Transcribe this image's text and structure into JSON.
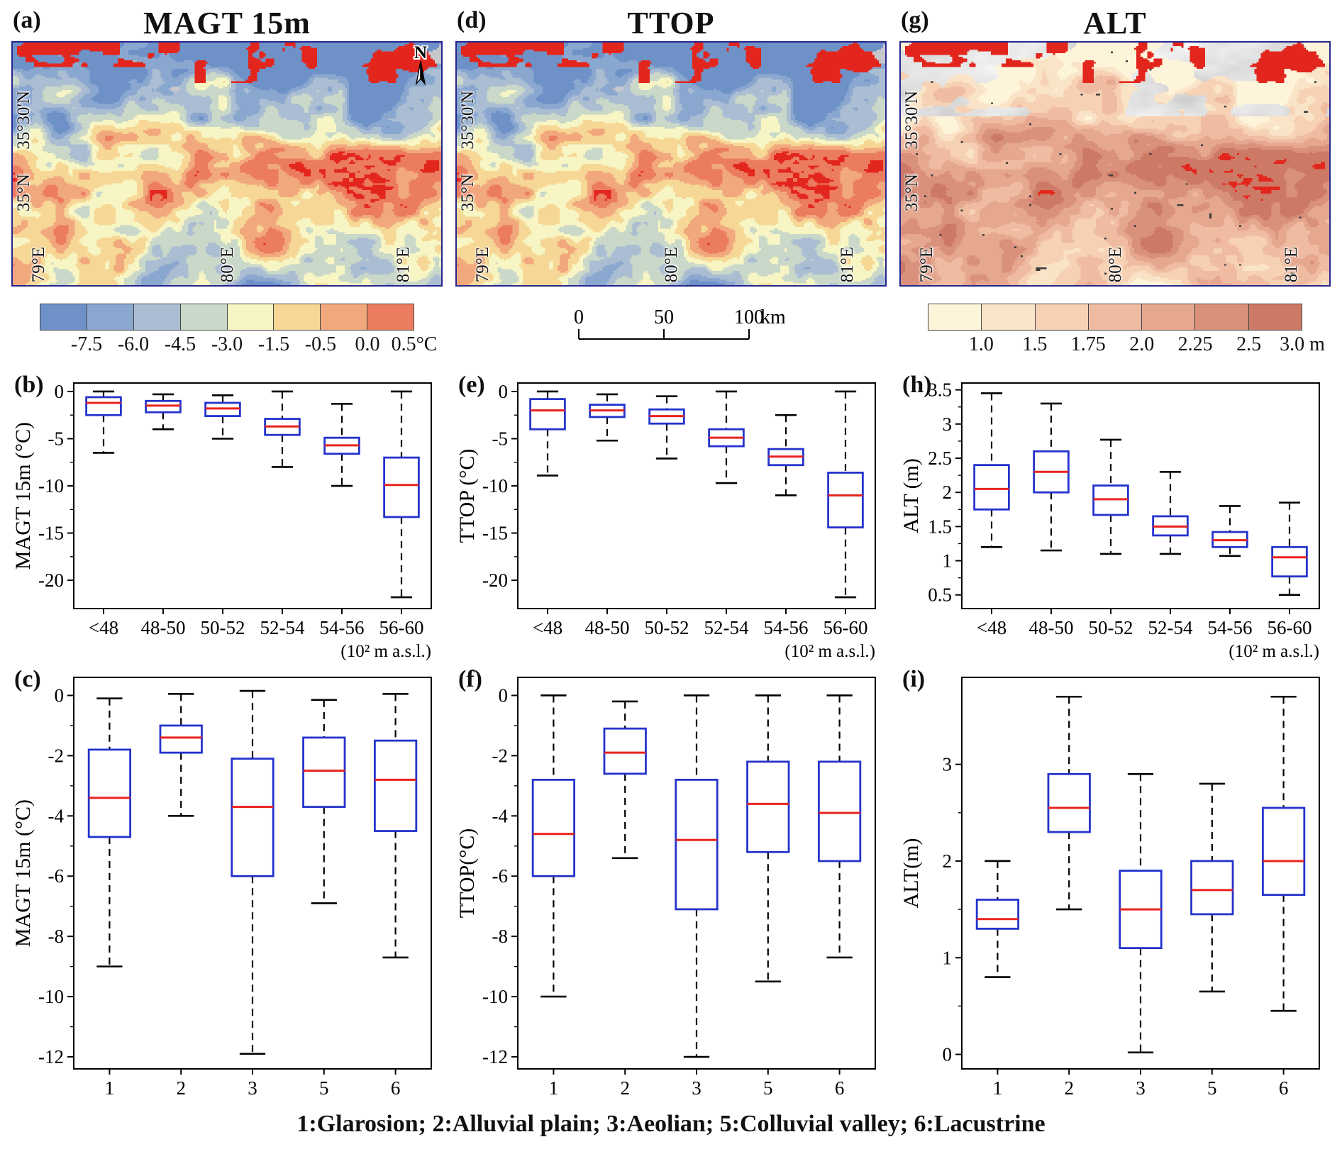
{
  "figure": {
    "caption": "1:Glarosion; 2:Alluvial plain; 3:Aeolian; 5:Colluvial valley; 6:Lacustrine"
  },
  "maps": {
    "north_label": "N",
    "panels": [
      {
        "label": "(a)",
        "title": "MAGT 15m",
        "palette": "temp"
      },
      {
        "label": "(d)",
        "title": "TTOP",
        "palette": "temp"
      },
      {
        "label": "(g)",
        "title": "ALT",
        "palette": "alt"
      }
    ],
    "lat_labels": [
      {
        "text": "35°30'N",
        "top_pct": 20
      },
      {
        "text": "35°N",
        "top_pct": 54
      }
    ],
    "lon_labels": [
      {
        "text": "79°E",
        "left_pct": 4
      },
      {
        "text": "80°E",
        "left_pct": 48
      },
      {
        "text": "81°E",
        "left_pct": 89
      }
    ]
  },
  "legend_temp": {
    "colors": [
      "#6e92c8",
      "#8aa7cf",
      "#aabdd2",
      "#c9d8c8",
      "#f7f5c3",
      "#f6d795",
      "#f2a87d",
      "#ec7c5f"
    ],
    "labels": [
      "-7.5",
      "-6.0",
      "-4.5",
      "-3.0",
      "-1.5",
      "-0.5",
      "0.0",
      "0.5°C"
    ]
  },
  "legend_alt": {
    "colors": [
      "#fdf4da",
      "#fae4c7",
      "#f6d1b4",
      "#efbca2",
      "#e6a78f",
      "#da917c",
      "#cc7a66"
    ],
    "labels": [
      "1.0",
      "1.5",
      "1.75",
      "2.0",
      "2.25",
      "2.5",
      "3.0 m"
    ]
  },
  "scale_bar": {
    "ticks": [
      "0",
      "50",
      "100"
    ],
    "unit": "km"
  },
  "style": {
    "box_color": "#2433cc",
    "median_color": "#e8231f",
    "whisker_color": "#000000",
    "extreme_red": "#e3261d",
    "glacier_gray": "#c7c8cc",
    "map_border": "#26268f"
  },
  "chart_data": [
    {
      "id": "b",
      "panel": "(b)",
      "type": "box",
      "row": 1,
      "ylabel": "MAGT 15m (°C)",
      "xnote": "(10² m a.s.l.)",
      "categories": [
        "<48",
        "48-50",
        "50-52",
        "52-54",
        "54-56",
        "56-60"
      ],
      "ylim": [
        -23,
        0.9
      ],
      "yticks": [
        0,
        -5,
        -10,
        -15,
        -20
      ],
      "boxes": [
        {
          "lo": -6.5,
          "q1": -2.5,
          "med": -1.2,
          "q3": -0.6,
          "hi": 0.0
        },
        {
          "lo": -4.0,
          "q1": -2.2,
          "med": -1.5,
          "q3": -1.0,
          "hi": -0.3
        },
        {
          "lo": -5.0,
          "q1": -2.6,
          "med": -1.8,
          "q3": -1.2,
          "hi": -0.4
        },
        {
          "lo": -8.0,
          "q1": -4.6,
          "med": -3.7,
          "q3": -2.9,
          "hi": 0.0
        },
        {
          "lo": -10.0,
          "q1": -6.6,
          "med": -5.7,
          "q3": -4.9,
          "hi": -1.3
        },
        {
          "lo": -21.8,
          "q1": -13.3,
          "med": -9.9,
          "q3": -7.0,
          "hi": 0.0
        }
      ]
    },
    {
      "id": "e",
      "panel": "(e)",
      "type": "box",
      "row": 1,
      "ylabel": "TTOP (°C)",
      "xnote": "(10² m a.s.l.)",
      "categories": [
        "<48",
        "48-50",
        "50-52",
        "52-54",
        "54-56",
        "56-60"
      ],
      "ylim": [
        -23,
        0.9
      ],
      "yticks": [
        0,
        -5,
        -10,
        -15,
        -20
      ],
      "boxes": [
        {
          "lo": -8.9,
          "q1": -4.0,
          "med": -2.0,
          "q3": -0.8,
          "hi": 0.0
        },
        {
          "lo": -5.2,
          "q1": -2.7,
          "med": -2.0,
          "q3": -1.4,
          "hi": -0.3
        },
        {
          "lo": -7.1,
          "q1": -3.4,
          "med": -2.6,
          "q3": -1.9,
          "hi": -0.5
        },
        {
          "lo": -9.7,
          "q1": -5.8,
          "med": -4.9,
          "q3": -4.0,
          "hi": 0.0
        },
        {
          "lo": -11.0,
          "q1": -7.8,
          "med": -6.9,
          "q3": -6.1,
          "hi": -2.5
        },
        {
          "lo": -21.8,
          "q1": -14.4,
          "med": -11.0,
          "q3": -8.6,
          "hi": 0.0
        }
      ]
    },
    {
      "id": "h",
      "panel": "(h)",
      "type": "box",
      "row": 1,
      "ylabel": "ALT (m)",
      "xnote": "(10² m a.s.l.)",
      "categories": [
        "<48",
        "48-50",
        "50-52",
        "52-54",
        "54-56",
        "56-60"
      ],
      "ylim": [
        0.3,
        3.6
      ],
      "yticks": [
        3.5,
        3,
        2.5,
        2,
        1.5,
        1,
        0.5
      ],
      "boxes": [
        {
          "lo": 1.2,
          "q1": 1.75,
          "med": 2.05,
          "q3": 2.4,
          "hi": 3.45
        },
        {
          "lo": 1.15,
          "q1": 2.0,
          "med": 2.3,
          "q3": 2.6,
          "hi": 3.3
        },
        {
          "lo": 1.1,
          "q1": 1.67,
          "med": 1.9,
          "q3": 2.1,
          "hi": 2.77
        },
        {
          "lo": 1.1,
          "q1": 1.37,
          "med": 1.5,
          "q3": 1.65,
          "hi": 2.3
        },
        {
          "lo": 1.07,
          "q1": 1.2,
          "med": 1.3,
          "q3": 1.42,
          "hi": 1.8
        },
        {
          "lo": 0.5,
          "q1": 0.77,
          "med": 1.05,
          "q3": 1.2,
          "hi": 1.85
        }
      ]
    },
    {
      "id": "c",
      "panel": "(c)",
      "type": "box",
      "row": 2,
      "ylabel": "MAGT 15m (°C)",
      "xnote": "",
      "categories": [
        "1",
        "2",
        "3",
        "5",
        "6"
      ],
      "ylim": [
        -12.4,
        0.6
      ],
      "yticks": [
        0,
        -2,
        -4,
        -6,
        -8,
        -10,
        -12
      ],
      "boxes": [
        {
          "lo": -9.0,
          "q1": -4.7,
          "med": -3.4,
          "q3": -1.8,
          "hi": -0.1
        },
        {
          "lo": -4.0,
          "q1": -1.9,
          "med": -1.4,
          "q3": -1.0,
          "hi": 0.05
        },
        {
          "lo": -11.9,
          "q1": -6.0,
          "med": -3.7,
          "q3": -2.1,
          "hi": 0.15
        },
        {
          "lo": -6.9,
          "q1": -3.7,
          "med": -2.5,
          "q3": -1.4,
          "hi": -0.15
        },
        {
          "lo": -8.7,
          "q1": -4.5,
          "med": -2.8,
          "q3": -1.5,
          "hi": 0.05
        }
      ]
    },
    {
      "id": "f",
      "panel": "(f)",
      "type": "box",
      "row": 2,
      "ylabel": "TTOP(°C)",
      "xnote": "",
      "categories": [
        "1",
        "2",
        "3",
        "5",
        "6"
      ],
      "ylim": [
        -12.4,
        0.6
      ],
      "yticks": [
        0,
        -2,
        -4,
        -6,
        -8,
        -10,
        -12
      ],
      "boxes": [
        {
          "lo": -10.0,
          "q1": -6.0,
          "med": -4.6,
          "q3": -2.8,
          "hi": 0.0
        },
        {
          "lo": -5.4,
          "q1": -2.6,
          "med": -1.9,
          "q3": -1.1,
          "hi": -0.2
        },
        {
          "lo": -12.0,
          "q1": -7.1,
          "med": -4.8,
          "q3": -2.8,
          "hi": 0.0
        },
        {
          "lo": -9.5,
          "q1": -5.2,
          "med": -3.6,
          "q3": -2.2,
          "hi": 0.0
        },
        {
          "lo": -8.7,
          "q1": -5.5,
          "med": -3.9,
          "q3": -2.2,
          "hi": 0.0
        }
      ]
    },
    {
      "id": "i",
      "panel": "(i)",
      "type": "box",
      "row": 2,
      "ylabel": "ALT(m)",
      "xnote": "",
      "categories": [
        "1",
        "2",
        "3",
        "5",
        "6"
      ],
      "ylim": [
        -0.15,
        3.9
      ],
      "yticks": [
        3,
        2,
        1,
        0
      ],
      "boxes": [
        {
          "lo": 0.8,
          "q1": 1.3,
          "med": 1.4,
          "q3": 1.6,
          "hi": 2.0
        },
        {
          "lo": 1.5,
          "q1": 2.3,
          "med": 2.55,
          "q3": 2.9,
          "hi": 3.7
        },
        {
          "lo": 0.02,
          "q1": 1.1,
          "med": 1.5,
          "q3": 1.9,
          "hi": 2.9
        },
        {
          "lo": 0.65,
          "q1": 1.45,
          "med": 1.7,
          "q3": 2.0,
          "hi": 2.8
        },
        {
          "lo": 0.45,
          "q1": 1.65,
          "med": 2.0,
          "q3": 2.55,
          "hi": 3.7
        }
      ]
    }
  ]
}
